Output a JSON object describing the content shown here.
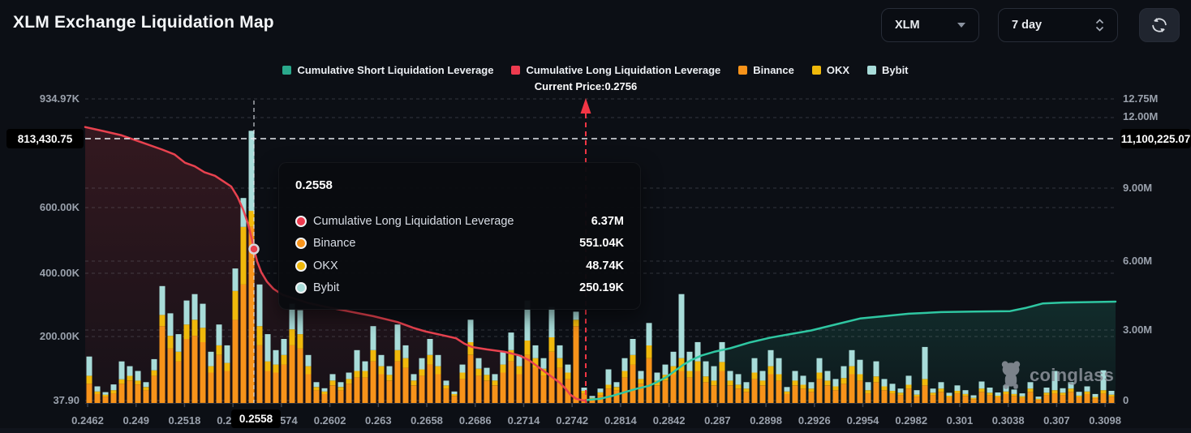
{
  "header": {
    "title": "XLM Exchange Liquidation Map"
  },
  "controls": {
    "symbol_select": {
      "value": "XLM"
    },
    "period_select": {
      "value": "7 day"
    },
    "refresh": {
      "name": "refresh"
    }
  },
  "legend": {
    "items": [
      {
        "label": "Cumulative Short Liquidation Leverage",
        "color": "#2aa98c"
      },
      {
        "label": "Cumulative Long Liquidation Leverage",
        "color": "#ee3b4f"
      },
      {
        "label": "Binance",
        "color": "#f7931a"
      },
      {
        "label": "OKX",
        "color": "#f0b90b"
      },
      {
        "label": "Bybit",
        "color": "#a8dcd9"
      }
    ]
  },
  "current_price_label": "Current Price:0.2756",
  "axes": {
    "left": {
      "ticks": [
        "934.97K",
        "600.00K",
        "400.00K",
        "200.00K",
        "37.90"
      ],
      "badge": "813,430.75"
    },
    "right": {
      "ticks": [
        "12.75M",
        "12.00M",
        "9.00M",
        "6.00M",
        "3.00M",
        "0"
      ],
      "badge": "11,100,225.07"
    },
    "x": {
      "ticks": [
        "0.2462",
        "0.249",
        "0.2518",
        "0.2546",
        "0.2574",
        "0.2602",
        "0.263",
        "0.2658",
        "0.2686",
        "0.2714",
        "0.2742",
        "0.2814",
        "0.2842",
        "0.287",
        "0.2898",
        "0.2926",
        "0.2954",
        "0.2982",
        "0.301",
        "0.3038",
        "0.307",
        "0.3098"
      ],
      "badge": "0.2558"
    }
  },
  "tooltip": {
    "title": "0.2558",
    "rows": [
      {
        "label": "Cumulative Long Liquidation Leverage",
        "value": "6.37M",
        "color": "#ee3b4f"
      },
      {
        "label": "Binance",
        "value": "551.04K",
        "color": "#f7931a"
      },
      {
        "label": "OKX",
        "value": "48.74K",
        "color": "#f0b90b"
      },
      {
        "label": "Bybit",
        "value": "250.19K",
        "color": "#a8dcd9"
      }
    ]
  },
  "watermark": {
    "text": "coinglass"
  },
  "chart_data": {
    "type": "mixed-bar-line",
    "title": "XLM Exchange Liquidation Map",
    "current_price": 0.2756,
    "highlighted_price": 0.2558,
    "left_axis": {
      "unit": "K",
      "ticks": [
        934.97,
        600,
        400,
        200,
        37.9
      ],
      "max_marker": 813430.75
    },
    "right_axis": {
      "unit": "M",
      "ticks": [
        12.75,
        12,
        9,
        6,
        3,
        0
      ],
      "max_marker": 11100225.07
    },
    "hover_point": {
      "price": 0.2558,
      "cumulative_long": "6.37M",
      "binance": "551.04K",
      "okx": "48.74K",
      "bybit": "250.19K"
    },
    "bars": {
      "unit": "K",
      "series_order": [
        "Binance",
        "OKX",
        "Bybit"
      ],
      "colors": [
        "#f7931a",
        "#f0b90b",
        "#a8dcd9"
      ],
      "values": [
        [
          60,
          25,
          60
        ],
        [
          28,
          8,
          16
        ],
        [
          20,
          6,
          8
        ],
        [
          30,
          10,
          18
        ],
        [
          60,
          14,
          56
        ],
        [
          70,
          15,
          30
        ],
        [
          58,
          12,
          30
        ],
        [
          40,
          10,
          15
        ],
        [
          85,
          17,
          35
        ],
        [
          240,
          35,
          90
        ],
        [
          170,
          40,
          70
        ],
        [
          130,
          30,
          55
        ],
        [
          200,
          45,
          75
        ],
        [
          210,
          50,
          80
        ],
        [
          190,
          45,
          75
        ],
        [
          95,
          20,
          45
        ],
        [
          150,
          30,
          65
        ],
        [
          100,
          25,
          55
        ],
        [
          260,
          90,
          70
        ],
        [
          370,
          180,
          90
        ],
        [
          551,
          49,
          250
        ],
        [
          180,
          60,
          130
        ],
        [
          100,
          30,
          85
        ],
        [
          95,
          25,
          45
        ],
        [
          120,
          30,
          50
        ],
        [
          180,
          50,
          80
        ],
        [
          170,
          45,
          75
        ],
        [
          90,
          25,
          35
        ],
        [
          40,
          10,
          15
        ],
        [
          28,
          8,
          10
        ],
        [
          55,
          15,
          20
        ],
        [
          40,
          10,
          15
        ],
        [
          60,
          15,
          20
        ],
        [
          80,
          20,
          65
        ],
        [
          80,
          20,
          30
        ],
        [
          130,
          35,
          75
        ],
        [
          90,
          25,
          35
        ],
        [
          70,
          18,
          27
        ],
        [
          130,
          35,
          80
        ],
        [
          110,
          30,
          40
        ],
        [
          55,
          15,
          20
        ],
        [
          85,
          20,
          35
        ],
        [
          120,
          30,
          50
        ],
        [
          90,
          25,
          35
        ],
        [
          45,
          10,
          15
        ],
        [
          22,
          6,
          8
        ],
        [
          75,
          20,
          25
        ],
        [
          150,
          40,
          70
        ],
        [
          85,
          22,
          33
        ],
        [
          70,
          18,
          22
        ],
        [
          55,
          15,
          20
        ],
        [
          95,
          25,
          40
        ],
        [
          130,
          35,
          55
        ],
        [
          90,
          25,
          35
        ],
        [
          150,
          45,
          125
        ],
        [
          110,
          30,
          40
        ],
        [
          85,
          22,
          33
        ],
        [
          160,
          45,
          95
        ],
        [
          110,
          30,
          40
        ],
        [
          75,
          20,
          25
        ],
        [
          240,
          20,
          25
        ],
        [
          30,
          8,
          10
        ],
        [
          12,
          4,
          6
        ],
        [
          25,
          8,
          12
        ],
        [
          45,
          12,
          48
        ],
        [
          40,
          10,
          15
        ],
        [
          80,
          20,
          40
        ],
        [
          120,
          30,
          50
        ],
        [
          60,
          15,
          25
        ],
        [
          140,
          40,
          70
        ],
        [
          55,
          15,
          25
        ],
        [
          70,
          18,
          32
        ],
        [
          90,
          25,
          45
        ],
        [
          100,
          40,
          200
        ],
        [
          80,
          20,
          60
        ],
        [
          100,
          30,
          60
        ],
        [
          65,
          18,
          47
        ],
        [
          55,
          15,
          45
        ],
        [
          100,
          28,
          62
        ],
        [
          55,
          15,
          30
        ],
        [
          45,
          12,
          33
        ],
        [
          35,
          10,
          20
        ],
        [
          75,
          20,
          45
        ],
        [
          55,
          15,
          30
        ],
        [
          90,
          25,
          50
        ],
        [
          70,
          20,
          50
        ],
        [
          28,
          8,
          14
        ],
        [
          55,
          15,
          30
        ],
        [
          45,
          12,
          28
        ],
        [
          35,
          10,
          20
        ],
        [
          75,
          20,
          45
        ],
        [
          55,
          15,
          30
        ],
        [
          40,
          12,
          23
        ],
        [
          60,
          18,
          37
        ],
        [
          90,
          25,
          50
        ],
        [
          70,
          20,
          45
        ],
        [
          30,
          10,
          25
        ],
        [
          65,
          18,
          47
        ],
        [
          40,
          12,
          23
        ],
        [
          30,
          8,
          22
        ],
        [
          25,
          7,
          13
        ],
        [
          45,
          12,
          28
        ],
        [
          20,
          6,
          14
        ],
        [
          55,
          20,
          100
        ],
        [
          25,
          7,
          13
        ],
        [
          35,
          10,
          20
        ],
        [
          18,
          5,
          9
        ],
        [
          30,
          8,
          17
        ],
        [
          22,
          6,
          12
        ],
        [
          12,
          4,
          8
        ],
        [
          35,
          10,
          22
        ],
        [
          25,
          7,
          16
        ],
        [
          18,
          5,
          10
        ],
        [
          28,
          8,
          19
        ],
        [
          22,
          6,
          14
        ],
        [
          16,
          5,
          9
        ],
        [
          35,
          10,
          20
        ],
        [
          10,
          3,
          7
        ],
        [
          25,
          7,
          16
        ],
        [
          30,
          10,
          60
        ],
        [
          25,
          7,
          14
        ],
        [
          35,
          10,
          20
        ],
        [
          18,
          5,
          12
        ],
        [
          28,
          8,
          16
        ],
        [
          15,
          4,
          9
        ],
        [
          30,
          10,
          62
        ],
        [
          20,
          6,
          12
        ]
      ]
    },
    "long_line": {
      "name": "Cumulative Long Liquidation Leverage",
      "unit": "M",
      "color": "#e8424f",
      "points": [
        [
          105,
          11.5
        ],
        [
          125,
          11.35
        ],
        [
          150,
          11.15
        ],
        [
          175,
          10.85
        ],
        [
          200,
          10.55
        ],
        [
          215,
          10.35
        ],
        [
          228,
          10.0
        ],
        [
          240,
          9.85
        ],
        [
          252,
          9.6
        ],
        [
          265,
          9.45
        ],
        [
          276,
          9.2
        ],
        [
          285,
          9.0
        ],
        [
          293,
          8.55
        ],
        [
          300,
          8.0
        ],
        [
          306,
          7.4
        ],
        [
          310,
          6.85
        ],
        [
          313,
          6.37
        ],
        [
          317,
          5.85
        ],
        [
          322,
          5.4
        ],
        [
          329,
          5.0
        ],
        [
          337,
          4.7
        ],
        [
          348,
          4.45
        ],
        [
          362,
          4.3
        ],
        [
          380,
          4.1
        ],
        [
          400,
          3.95
        ],
        [
          430,
          3.75
        ],
        [
          460,
          3.55
        ],
        [
          490,
          3.3
        ],
        [
          510,
          3.05
        ],
        [
          525,
          2.9
        ],
        [
          545,
          2.75
        ],
        [
          562,
          2.62
        ],
        [
          572,
          2.4
        ],
        [
          582,
          2.25
        ],
        [
          600,
          2.15
        ],
        [
          622,
          2.05
        ],
        [
          640,
          1.9
        ],
        [
          652,
          1.7
        ],
        [
          662,
          1.45
        ],
        [
          672,
          1.2
        ],
        [
          682,
          0.95
        ],
        [
          690,
          0.75
        ],
        [
          697,
          0.5
        ],
        [
          703,
          0.25
        ],
        [
          710,
          0.08
        ],
        [
          718,
          0.01
        ],
        [
          722,
          0.0
        ]
      ]
    },
    "short_line": {
      "name": "Cumulative Short Liquidation Leverage",
      "unit": "M",
      "color": "#2fc7a2",
      "points": [
        [
          722,
          0.02
        ],
        [
          740,
          0.08
        ],
        [
          755,
          0.2
        ],
        [
          770,
          0.35
        ],
        [
          785,
          0.5
        ],
        [
          800,
          0.62
        ],
        [
          810,
          0.78
        ],
        [
          822,
          1.0
        ],
        [
          832,
          1.25
        ],
        [
          842,
          1.5
        ],
        [
          852,
          1.7
        ],
        [
          865,
          1.9
        ],
        [
          880,
          2.05
        ],
        [
          900,
          2.2
        ],
        [
          925,
          2.45
        ],
        [
          950,
          2.65
        ],
        [
          975,
          2.8
        ],
        [
          1000,
          2.95
        ],
        [
          1030,
          3.2
        ],
        [
          1060,
          3.45
        ],
        [
          1090,
          3.55
        ],
        [
          1120,
          3.65
        ],
        [
          1160,
          3.72
        ],
        [
          1200,
          3.74
        ],
        [
          1245,
          3.76
        ],
        [
          1265,
          3.9
        ],
        [
          1285,
          4.08
        ],
        [
          1310,
          4.12
        ],
        [
          1340,
          4.14
        ],
        [
          1375,
          4.16
        ]
      ]
    }
  }
}
